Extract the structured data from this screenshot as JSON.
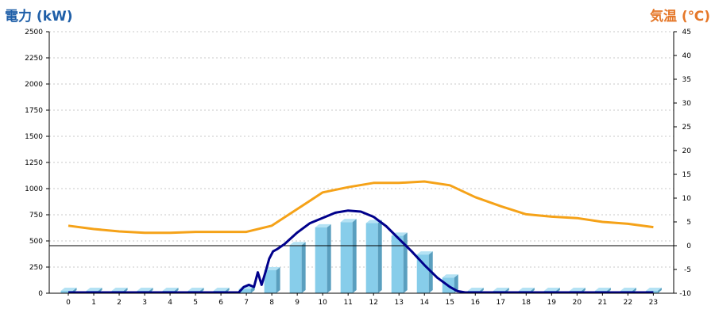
{
  "colors": {
    "left_title": "#1f5fa8",
    "right_title": "#e5782a",
    "bar_front": "#87cdea",
    "bar_side": "#5a9fbf",
    "bar_top": "#b4e2f4",
    "power_line": "#00008b",
    "temp_line": "#f5a218",
    "grid": "#c8c8c8",
    "axis": "#000000"
  },
  "chart_data": {
    "type": "bar",
    "y_left": {
      "label": "電力 (kW)",
      "ylim": [
        0,
        2500
      ],
      "ticks": [
        0,
        250,
        500,
        750,
        1000,
        1250,
        1500,
        1750,
        2000,
        2250,
        2500
      ]
    },
    "y_right": {
      "label": "気温 (℃)",
      "ylim": [
        -10,
        45
      ],
      "ticks": [
        -10,
        -5,
        0,
        5,
        10,
        15,
        20,
        25,
        30,
        35,
        40,
        45
      ]
    },
    "categories": [
      "0",
      "1",
      "2",
      "3",
      "4",
      "5",
      "6",
      "7",
      "8",
      "9",
      "10",
      "11",
      "12",
      "13",
      "14",
      "15",
      "16",
      "17",
      "18",
      "19",
      "20",
      "21",
      "22",
      "23"
    ],
    "grid": true,
    "series": [
      {
        "type": "bar",
        "axis": "left",
        "values": [
          0,
          0,
          0,
          0,
          0,
          0,
          0,
          40,
          220,
          460,
          630,
          680,
          670,
          550,
          370,
          150,
          0,
          0,
          0,
          0,
          0,
          0,
          0,
          0
        ]
      },
      {
        "type": "line",
        "axis": "left",
        "x": [
          0,
          1,
          2,
          3,
          4,
          5,
          6,
          6.7,
          6.9,
          7.1,
          7.3,
          7.45,
          7.6,
          7.75,
          7.9,
          8.05,
          8.2,
          8.5,
          9,
          9.5,
          10,
          10.5,
          11,
          11.5,
          12,
          12.5,
          13,
          13.5,
          14,
          14.5,
          15,
          15.3,
          15.6,
          16,
          17,
          18,
          19,
          20,
          21,
          22,
          23
        ],
        "values": [
          0,
          0,
          0,
          0,
          0,
          0,
          0,
          0,
          60,
          80,
          60,
          200,
          80,
          200,
          330,
          400,
          420,
          470,
          580,
          670,
          720,
          770,
          790,
          780,
          730,
          640,
          520,
          400,
          270,
          150,
          60,
          20,
          0,
          0,
          0,
          0,
          0,
          0,
          0,
          0,
          0
        ]
      },
      {
        "type": "line",
        "axis": "right",
        "values": [
          4.2,
          3.5,
          3.0,
          2.7,
          2.7,
          2.9,
          2.9,
          2.9,
          4.2,
          7.7,
          11.2,
          12.3,
          13.2,
          13.2,
          13.5,
          12.7,
          10.2,
          8.3,
          6.6,
          6.1,
          5.8,
          5.0,
          4.6,
          3.9
        ]
      }
    ]
  }
}
